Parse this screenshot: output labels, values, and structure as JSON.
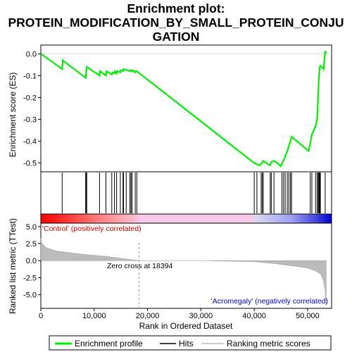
{
  "title_lines": [
    "Enrichment plot:",
    "PROTEIN_MODIFICATION_BY_SMALL_PROTEIN_CONJU",
    "GATION"
  ],
  "colors": {
    "es_line": "#00ee00",
    "hit_line": "#000000",
    "metric_fill": "#bbbbbb",
    "pos_bar": "#ff0000",
    "neg_bar": "#0000ff",
    "pos_label": "#cc0000",
    "neg_label": "#0000cc",
    "zero_line": "#bbbbbb"
  },
  "chart_data": [
    {
      "type": "line",
      "panel": "enrichment-profile",
      "ylabel": "Enrichment score (ES)",
      "xlim": [
        0,
        54500
      ],
      "ylim": [
        -0.54,
        0.04
      ],
      "yticks": [
        0.0,
        -0.1,
        -0.2,
        -0.3,
        -0.4,
        -0.5
      ],
      "ytick_labels": [
        "0.0",
        "-0.1",
        "-0.2",
        "-0.3",
        "-0.4",
        "-0.5"
      ],
      "grid": false,
      "series": [
        {
          "name": "Enrichment profile",
          "x": [
            0,
            4000,
            4100,
            8400,
            8500,
            8550,
            8600,
            11000,
            11100,
            12200,
            12300,
            13300,
            13400,
            13800,
            13900,
            14200,
            14300,
            14900,
            15000,
            15400,
            15500,
            16700,
            16800,
            17100,
            17200,
            17700,
            17800,
            18000,
            40000,
            40500,
            41000,
            41300,
            41500,
            41700,
            42200,
            43000,
            43200,
            43700,
            44300,
            45000,
            45200,
            45500,
            45800,
            46200,
            46500,
            46800,
            47000,
            50200,
            50500,
            50800,
            51500,
            51800,
            51900,
            52000,
            52100,
            52200,
            52300,
            52400,
            53000,
            53300,
            53600
          ],
          "y": [
            0.0,
            -0.07,
            -0.03,
            -0.11,
            -0.085,
            -0.075,
            -0.06,
            -0.1,
            -0.08,
            -0.1,
            -0.08,
            -0.095,
            -0.085,
            -0.09,
            -0.08,
            -0.09,
            -0.08,
            -0.085,
            -0.075,
            -0.08,
            -0.07,
            -0.08,
            -0.075,
            -0.08,
            -0.075,
            -0.085,
            -0.08,
            -0.08,
            -0.5,
            -0.505,
            -0.51,
            -0.505,
            -0.495,
            -0.49,
            -0.5,
            -0.51,
            -0.495,
            -0.49,
            -0.5,
            -0.515,
            -0.5,
            -0.49,
            -0.47,
            -0.445,
            -0.42,
            -0.4,
            -0.38,
            -0.445,
            -0.41,
            -0.37,
            -0.33,
            -0.3,
            -0.24,
            -0.18,
            -0.12,
            -0.085,
            -0.06,
            -0.055,
            -0.07,
            0.01,
            0.005
          ]
        }
      ]
    },
    {
      "type": "hits",
      "panel": "gene-set-hits",
      "x": [
        4000,
        8400,
        8500,
        8600,
        11000,
        12200,
        13300,
        13800,
        14200,
        14900,
        15400,
        15500,
        16000,
        16700,
        16900,
        17100,
        17700,
        18000,
        40000,
        40500,
        41300,
        41500,
        41700,
        43000,
        43200,
        43700,
        45200,
        45500,
        45800,
        46200,
        46500,
        46800,
        47000,
        50500,
        50800,
        51500,
        51800,
        52000,
        52100,
        52200,
        52300,
        52400,
        53300
      ]
    },
    {
      "type": "area",
      "panel": "ranked-list-metric",
      "ylabel": "Ranked list metric (TTest)",
      "xlabel": "Rank in Ordered Dataset",
      "xlim": [
        0,
        54500
      ],
      "ylim": [
        -7,
        5.5
      ],
      "xticks": [
        0,
        10000,
        20000,
        30000,
        40000,
        50000
      ],
      "xtick_labels": [
        "0",
        "10,000",
        "20,000",
        "30,000",
        "40,000",
        "50,000"
      ],
      "yticks": [
        5.0,
        2.5,
        0.0,
        -2.5,
        -5.0
      ],
      "ytick_labels": [
        "5.0",
        "2.5",
        "0.0",
        "-2.5",
        "-5.0"
      ],
      "series": [
        {
          "name": "Ranking metric scores",
          "x": [
            0,
            200,
            1000,
            3000,
            6000,
            9000,
            12000,
            14000,
            16000,
            18394,
            30000,
            40000,
            44000,
            48000,
            50000,
            51500,
            52500,
            53000,
            53300,
            53500
          ],
          "y": [
            3.3,
            2.6,
            1.9,
            1.4,
            1.1,
            0.85,
            0.65,
            0.45,
            0.25,
            0.0,
            0.0,
            -0.15,
            -0.45,
            -0.85,
            -1.1,
            -1.5,
            -2.0,
            -3.0,
            -4.5,
            -6.5
          ]
        }
      ],
      "zero_cross": 18394,
      "annotations": {
        "zero_cross": "Zero cross at 18394",
        "positive": "'Control' (positively correlated)",
        "negative": "'Acromegaly' (negatively correlated)"
      }
    }
  ],
  "legend": {
    "items": [
      {
        "label": "Enrichment profile",
        "color": "#00ee00"
      },
      {
        "label": "Hits",
        "color": "#000000"
      },
      {
        "label": "Ranking metric scores",
        "color": "#bbbbbb"
      }
    ]
  }
}
